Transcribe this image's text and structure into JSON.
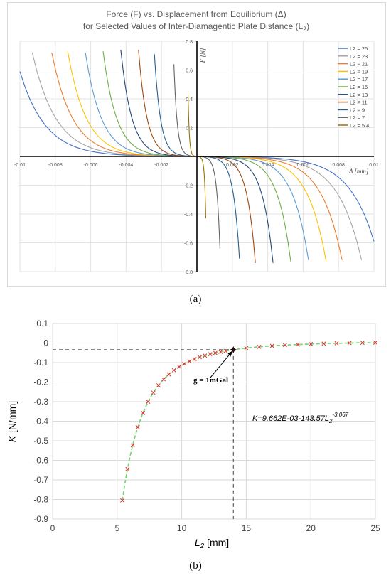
{
  "captions": {
    "a": "(a)",
    "b": "(b)"
  },
  "chart_data": [
    {
      "type": "line",
      "title_line1": "Force (F) vs. Displacement from Equilibrium (Δ)",
      "title_line2_pre": "for Selected Values of Inter-Diamagentic Plate Distance (L",
      "title_line2_sub": "2",
      "title_line2_post": ")",
      "xlabel": "Δ [mm]",
      "ylabel": "F [N]",
      "xlim": [
        -0.01,
        0.01
      ],
      "ylim": [
        -0.8,
        0.8
      ],
      "x_ticks": [
        "-0.01",
        "-0.008",
        "-0.006",
        "-0.004",
        "-0.002",
        "0",
        "0.002",
        "0.004",
        "0.006",
        "0.008",
        "0.01"
      ],
      "y_ticks": [
        "0.8",
        "0.6",
        "0.4",
        "0.2",
        "0",
        "-0.2",
        "-0.4",
        "-0.6",
        "-0.8"
      ],
      "grid": true,
      "legend_position": "right",
      "series": [
        {
          "name": "L2 = 25",
          "color": "#4472c4",
          "x_end": 0.01,
          "f_end": 0.59
        },
        {
          "name": "L2 = 23",
          "color": "#a5a5a5",
          "x_end": 0.0093,
          "f_end": 0.72
        },
        {
          "name": "L2 = 21",
          "color": "#ed7d31",
          "x_end": 0.0082,
          "f_end": 0.72
        },
        {
          "name": "L2 = 19",
          "color": "#ffc000",
          "x_end": 0.0073,
          "f_end": 0.73
        },
        {
          "name": "L2 = 17",
          "color": "#5b9bd5",
          "x_end": 0.0063,
          "f_end": 0.72
        },
        {
          "name": "L2 = 15",
          "color": "#70ad47",
          "x_end": 0.0053,
          "f_end": 0.73
        },
        {
          "name": "L2 = 13",
          "color": "#264478",
          "x_end": 0.0043,
          "f_end": 0.74
        },
        {
          "name": "L2 = 11",
          "color": "#9e480e",
          "x_end": 0.0033,
          "f_end": 0.74
        },
        {
          "name": "L2 = 9",
          "color": "#255e91",
          "x_end": 0.0024,
          "f_end": 0.71
        },
        {
          "name": "L2 = 7",
          "color": "#636363",
          "x_end": 0.0013,
          "f_end": 0.64
        },
        {
          "name": "L2 = 5.4",
          "color": "#997300",
          "x_end": 0.0005,
          "f_end": 0.43
        }
      ]
    },
    {
      "type": "scatter",
      "xlabel_main": "L",
      "xlabel_sub": "2",
      "xlabel_unit": " [mm]",
      "ylabel_main": "K",
      "ylabel_unit": " [N/mm]",
      "xlim": [
        0,
        25
      ],
      "ylim": [
        -0.9,
        0.1
      ],
      "x_ticks": [
        "0",
        "5",
        "10",
        "15",
        "20",
        "25"
      ],
      "y_ticks": [
        "0.1",
        "0",
        "-0.1",
        "-0.2",
        "-0.3",
        "-0.4",
        "-0.5",
        "-0.6",
        "-0.7",
        "-0.8",
        "-0.9"
      ],
      "grid": true,
      "fit": {
        "a": 0.009662,
        "b": 143.57,
        "p": -3.067,
        "color": "#6fd36f"
      },
      "points_x": [
        5.4,
        5.8,
        6.2,
        6.6,
        7.0,
        7.4,
        7.8,
        8.2,
        8.6,
        9.0,
        9.4,
        9.8,
        10.2,
        10.6,
        11.0,
        11.4,
        11.8,
        12.2,
        12.6,
        13.0,
        13.4,
        14.0,
        15.0,
        16.0,
        17.0,
        18.0,
        19.0,
        20.0,
        21.0,
        22.0,
        23.0,
        24.0,
        25.0
      ],
      "marker_color": "#e03030",
      "annotation_point": {
        "x": 14,
        "y": -0.034
      },
      "annotation_label": "g = 1mGal",
      "equation_pre": "K=9.662E-03-143.57L",
      "equation_sub": "2",
      "equation_sup": "-3.067"
    }
  ]
}
